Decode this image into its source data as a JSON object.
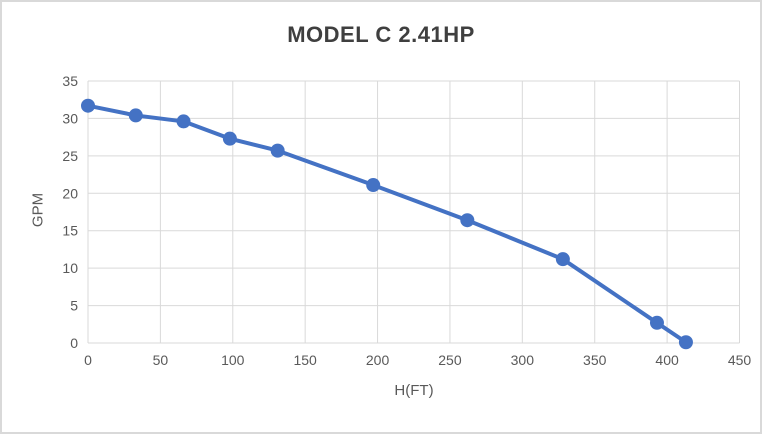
{
  "chart_data": {
    "type": "line",
    "title": "MODEL C 2.41HP",
    "xlabel": "H(FT)",
    "ylabel": "GPM",
    "x": [
      0,
      33,
      66,
      98,
      131,
      197,
      262,
      328,
      393,
      413
    ],
    "y": [
      31.7,
      30.4,
      29.6,
      27.3,
      25.7,
      21.1,
      16.4,
      11.2,
      2.7,
      0.1
    ],
    "xlim": [
      0,
      450
    ],
    "ylim": [
      0,
      35
    ],
    "x_ticks": [
      0,
      50,
      100,
      150,
      200,
      250,
      300,
      350,
      400,
      450
    ],
    "y_ticks": [
      0,
      5,
      10,
      15,
      20,
      25,
      30,
      35
    ],
    "grid": true,
    "legend": false,
    "line_color": "#4472c4",
    "marker_color": "#4472c4",
    "gridline_color": "#d9d9d9",
    "tick_label_color": "#595959",
    "title_color": "#3f3f3f"
  }
}
